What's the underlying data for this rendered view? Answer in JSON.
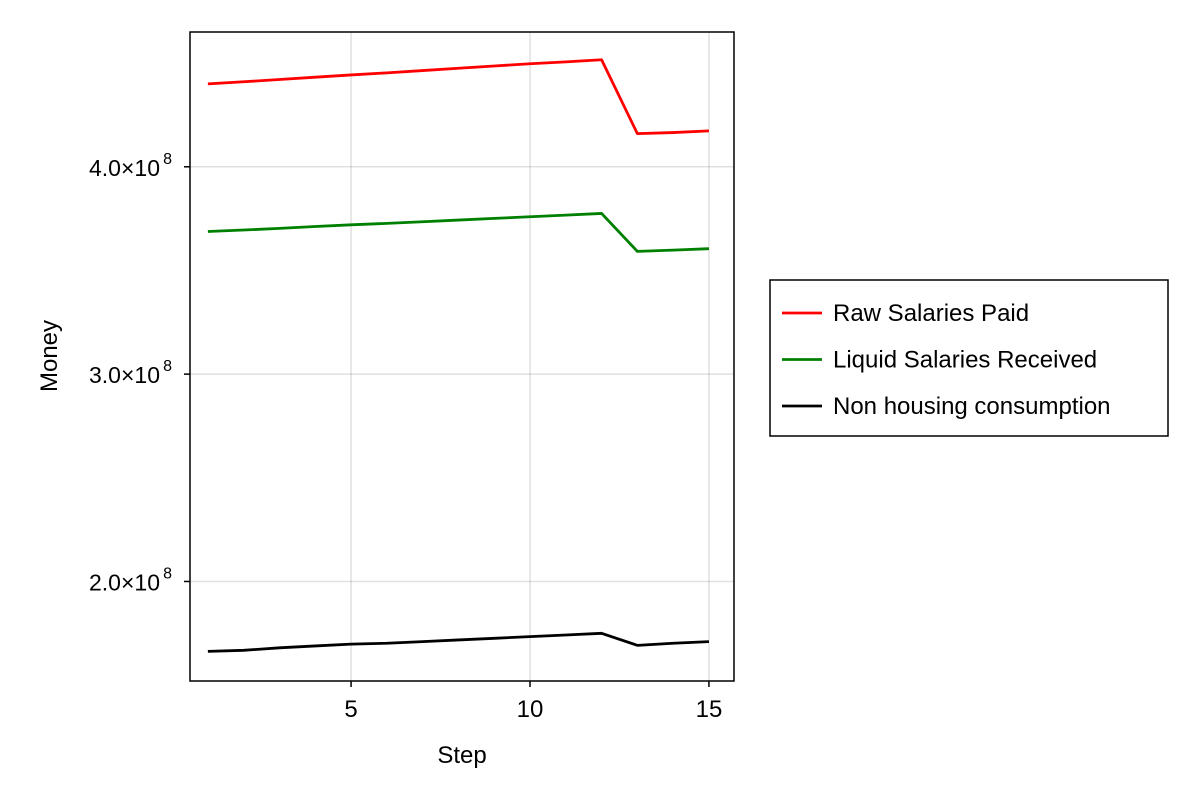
{
  "chart_data": {
    "type": "line",
    "title": "",
    "xlabel": "Step",
    "ylabel": "Money",
    "xlim": [
      0.5,
      15.7
    ],
    "ylim": [
      152000000,
      465000000
    ],
    "x_ticks": [
      5,
      10,
      15
    ],
    "x_tick_labels": [
      "5",
      "10",
      "15"
    ],
    "y_ticks": [
      200000000,
      300000000,
      400000000
    ],
    "y_tick_mantissas": [
      "2.0",
      "3.0",
      "4.0"
    ],
    "y_tick_times": "×10",
    "y_tick_exponent": "8",
    "grid": true,
    "legend_position": "right",
    "x": [
      1,
      2,
      3,
      4,
      5,
      6,
      7,
      8,
      9,
      10,
      11,
      12,
      13,
      14,
      15
    ],
    "series": [
      {
        "name": "Raw Salaries Paid",
        "color": "#ff0000",
        "values": [
          440000000,
          441000000,
          442100000,
          443200000,
          444300000,
          445300000,
          446400000,
          447500000,
          448600000,
          449700000,
          450600000,
          451600000,
          416000000,
          416500000,
          417300000
        ]
      },
      {
        "name": "Liquid Salaries Received",
        "color": "#008000",
        "values": [
          368800000,
          369500000,
          370300000,
          371200000,
          372000000,
          372700000,
          373500000,
          374300000,
          375100000,
          375900000,
          376700000,
          377500000,
          359200000,
          359800000,
          360500000
        ]
      },
      {
        "name": "Non housing consumption",
        "color": "#000000",
        "values": [
          166300000,
          166800000,
          168000000,
          168900000,
          169800000,
          170200000,
          171000000,
          171800000,
          172600000,
          173400000,
          174200000,
          175000000,
          169200000,
          170200000,
          171000000
        ]
      }
    ]
  }
}
